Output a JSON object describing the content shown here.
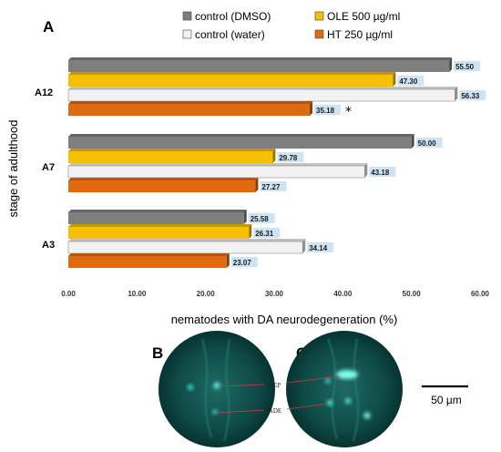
{
  "panel_a": "A",
  "panel_b": "B",
  "panel_c": "C",
  "colors": {
    "dmso": "#7f7f7f",
    "ole": "#f6c000",
    "water": "#f2f2f2",
    "ht": "#e06a10",
    "label_bg": "#cfe4f3"
  },
  "chart_data": {
    "type": "bar",
    "orientation": "horizontal",
    "categories": [
      "A12",
      "A7",
      "A3"
    ],
    "series": [
      {
        "name": "control (DMSO)",
        "values": [
          55.5,
          50.0,
          25.58
        ]
      },
      {
        "name": "OLE 500 µg/ml",
        "values": [
          47.3,
          29.78,
          26.31
        ]
      },
      {
        "name": "control (water)",
        "values": [
          56.33,
          43.18,
          34.14
        ]
      },
      {
        "name": "HT 250 µg/ml",
        "values": [
          35.18,
          27.27,
          23.07
        ]
      }
    ],
    "xlabel": "nematodes with DA neurodegeneration (%)",
    "ylabel": "stage of adulthood",
    "xlim": [
      0,
      60
    ],
    "xticks": [
      "0.00",
      "10.00",
      "20.00",
      "30.00",
      "40.00",
      "50.00",
      "60.00"
    ],
    "annotation": "*",
    "legend": "top",
    "grid": false
  },
  "micrographs": {
    "cep_label": "CEP",
    "ade_label": "ADE",
    "scale_bar": "50 µm"
  }
}
